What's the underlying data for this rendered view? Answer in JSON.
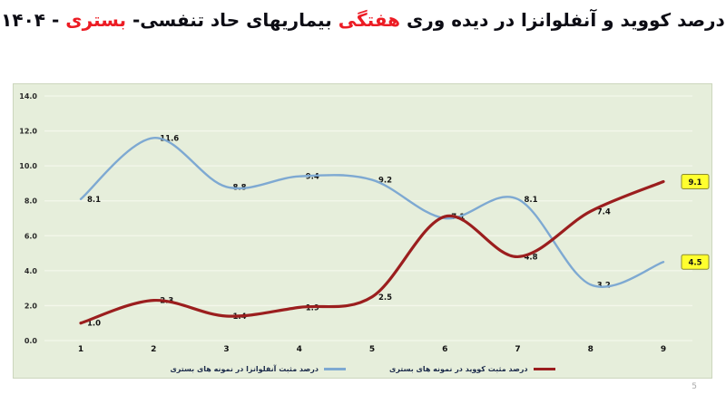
{
  "title": {
    "text_before_weekly": "درصد کووید و آنفلوانزا در دیده وری",
    "weekly_highlight": "هفتگی",
    "text_middle": "بیماریهای حاد تنفسی-",
    "hospitalized_highlight": "بستری",
    "year_suffix": "- ۱۴۰۴"
  },
  "page_number": "5",
  "colors": {
    "title_text": "#0c0c14",
    "title_highlight": "#ec1c24",
    "chart_background": "#e6eedb",
    "gridline": "#f3f7eb",
    "influenza_line": "#7ea9d2",
    "covid_line": "#9b1e1e",
    "end_label_background": "#ffff2e",
    "end_label_border": "#8b8b30",
    "label_text": "#141414"
  },
  "chart_data": {
    "type": "line",
    "title": "درصد کووید و آنفلوانزا در دیده وری هفتگی بیماریهای حاد تنفسی- بستری- ۱۴۰۴",
    "x": [
      1,
      2,
      3,
      4,
      5,
      6,
      7,
      8,
      9
    ],
    "xlabel": "",
    "ylabel": "",
    "ylim": [
      0,
      14
    ],
    "ytick_values": [
      0,
      2,
      4,
      6,
      8,
      10,
      12,
      14
    ],
    "ytick_labels": [
      "0.0",
      "2.0",
      "4.0",
      "6.0",
      "8.0",
      "10.0",
      "12.0",
      "14.0"
    ],
    "grid": "horizontal",
    "legend_position": "bottom",
    "smooth_lines": true,
    "series": [
      {
        "name": "درصد مثبت کووید در نمونه های بستری",
        "color": "#9b1e1e",
        "values": [
          1.0,
          2.3,
          1.4,
          1.9,
          2.5,
          7.1,
          4.8,
          7.4,
          9.1
        ],
        "point_labels": [
          "1.0",
          "2.3",
          "1.4",
          "1.9",
          "2.5",
          "7.1",
          "4.8",
          "7.4",
          "9.1"
        ],
        "end_value_highlighted": true
      },
      {
        "name": "درصد مثبت آنفلوانزا در نمونه های بستری",
        "color": "#7ea9d2",
        "values": [
          8.1,
          11.6,
          8.8,
          9.4,
          9.2,
          7.0,
          8.1,
          3.2,
          4.5
        ],
        "point_labels": [
          "8.1",
          "11.6",
          "8.8",
          "9.4",
          "9.2",
          "",
          "8.1",
          "3.2",
          "4.5"
        ],
        "end_value_highlighted": true
      }
    ]
  }
}
